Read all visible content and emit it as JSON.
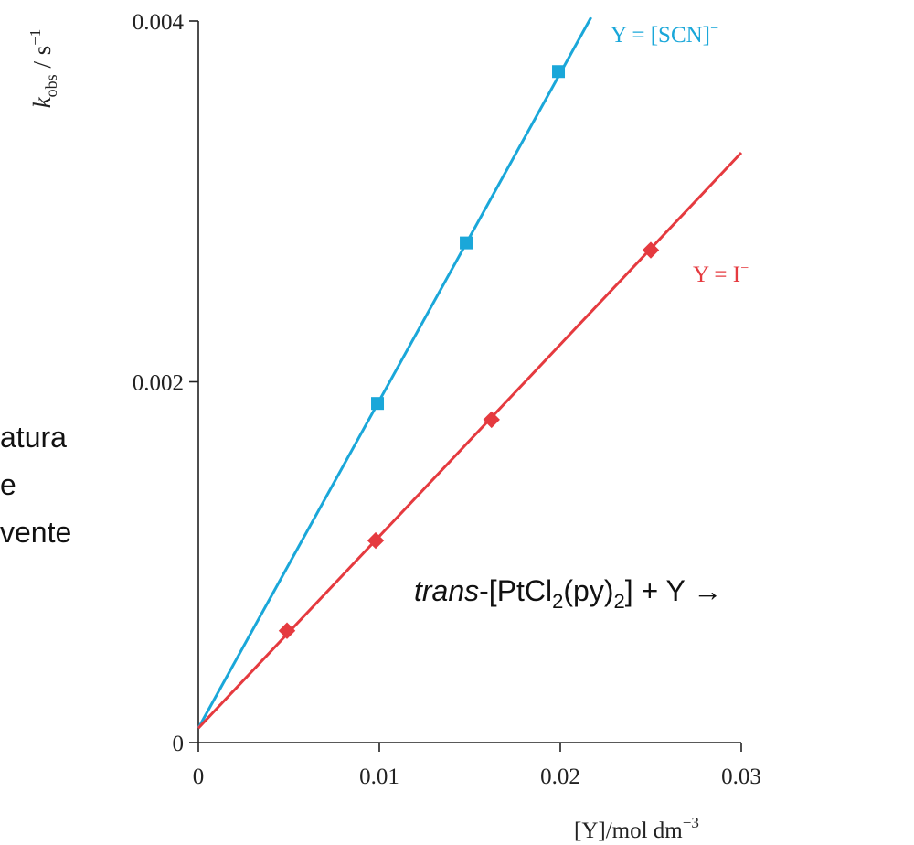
{
  "chart_data": {
    "type": "line",
    "xlabel": "[Y]/mol dm",
    "xlabel_exp": "−3",
    "ylabel": "k",
    "ylabel_sub": "obs",
    "ylabel_unit": " / s",
    "ylabel_exp": "−1",
    "xlim": [
      0,
      0.03
    ],
    "ylim": [
      0,
      0.004
    ],
    "x_ticks": [
      0,
      0.01,
      0.02,
      0.03
    ],
    "x_tick_labels": [
      "0",
      "0.01",
      "0.02",
      "0.03"
    ],
    "y_ticks": [
      0,
      0.002,
      0.004
    ],
    "y_tick_labels": [
      "0",
      "0.002",
      "0.004"
    ],
    "grid": false,
    "series": [
      {
        "name": "Y = [SCN]",
        "name_sup": "−",
        "color": "#1aa7d9",
        "marker": "square",
        "points": [
          [
            0.0099,
            0.00188
          ],
          [
            0.0148,
            0.00277
          ],
          [
            0.0199,
            0.00372
          ]
        ],
        "fit_line": [
          [
            0,
            8e-05
          ],
          [
            0.0217,
            0.00402
          ]
        ]
      },
      {
        "name": "Y = I",
        "name_sup": "−",
        "color": "#e53a3f",
        "marker": "diamond",
        "points": [
          [
            0.0049,
            0.00062
          ],
          [
            0.0098,
            0.00112
          ],
          [
            0.0162,
            0.00179
          ],
          [
            0.025,
            0.00273
          ]
        ],
        "fit_line": [
          [
            0,
            8e-05
          ],
          [
            0.03,
            0.00327
          ]
        ]
      }
    ]
  },
  "side_text": [
    "atura",
    "e",
    "vente"
  ],
  "equation": {
    "italic": "trans",
    "part1": "-[PtCl",
    "sub1": "2",
    "part2": "(py)",
    "sub2": "2",
    "part3": "] + Y →"
  }
}
